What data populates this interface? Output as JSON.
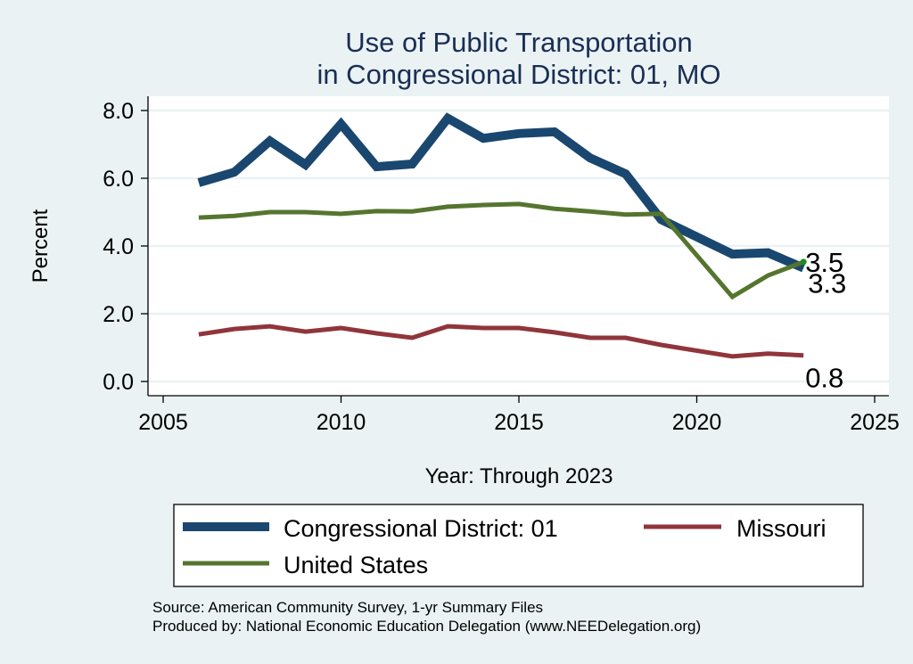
{
  "chart_data": {
    "type": "line",
    "title": [
      "Use of Public Transportation",
      "in Congressional District: 01, MO"
    ],
    "xlabel": "Year: Through 2023",
    "ylabel": "Percent",
    "xlim": [
      2005,
      2025
    ],
    "ylim": [
      0,
      8
    ],
    "x_ticks": [
      2005,
      2010,
      2015,
      2020,
      2025
    ],
    "x_tick_labels": [
      "2005",
      "2010",
      "2015",
      "2020",
      "2025"
    ],
    "y_ticks": [
      0,
      2,
      4,
      6,
      8
    ],
    "y_tick_labels": [
      "0.0",
      "2.0",
      "4.0",
      "6.0",
      "8.0"
    ],
    "grid": true,
    "legend_position": "bottom",
    "x": [
      2006,
      2007,
      2008,
      2009,
      2010,
      2011,
      2012,
      2013,
      2014,
      2015,
      2016,
      2017,
      2018,
      2019,
      2021,
      2022,
      2023
    ],
    "series": [
      {
        "name": "Congressional District: 01",
        "color": "#1A476F",
        "values": [
          5.87,
          6.18,
          7.1,
          6.4,
          7.6,
          6.34,
          6.42,
          7.77,
          7.18,
          7.32,
          7.37,
          6.6,
          6.13,
          4.78,
          3.76,
          3.8,
          3.35
        ],
        "end_label": "3.3"
      },
      {
        "name": "Missouri",
        "color": "#90353B",
        "values": [
          1.39,
          1.55,
          1.63,
          1.47,
          1.58,
          1.42,
          1.29,
          1.63,
          1.58,
          1.58,
          1.45,
          1.29,
          1.29,
          1.08,
          0.74,
          0.82,
          0.77
        ],
        "end_label": "0.8"
      },
      {
        "name": "United States",
        "color": "#55752F",
        "values": [
          4.84,
          4.89,
          5.0,
          5.0,
          4.95,
          5.03,
          5.02,
          5.16,
          5.21,
          5.24,
          5.1,
          5.02,
          4.93,
          4.95,
          2.5,
          3.13,
          3.53
        ],
        "end_label": "3.5"
      }
    ],
    "annotations": [
      "3.5",
      "3.3",
      "0.8"
    ],
    "notes": [
      "Source: American Community Survey, 1-yr Summary Files",
      "Produced by: National Economic Education Delegation (www.NEEDelegation.org)"
    ]
  },
  "colors": {
    "background": "#EAF2F3",
    "plot_background": "#FFFFFF",
    "gridline": "#EAF2F3",
    "title": "#1A2E55",
    "us_end_marker": "#1E8B1E"
  }
}
